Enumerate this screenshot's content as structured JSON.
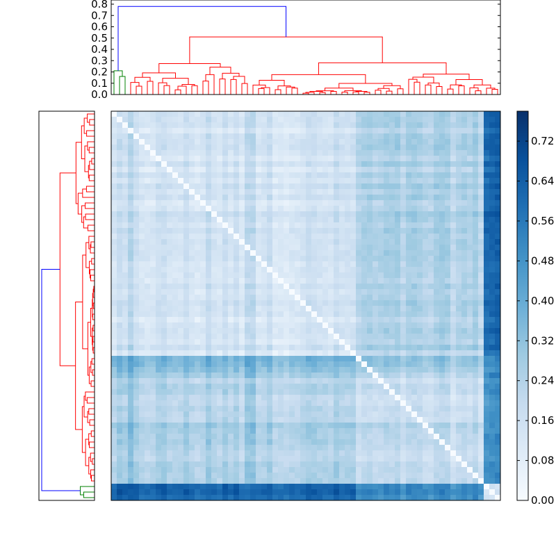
{
  "chart_data": {
    "type": "heatmap",
    "description_note": "",
    "top_dendrogram": {
      "yticks": [
        "0.0",
        "0.1",
        "0.2",
        "0.3",
        "0.4",
        "0.5",
        "0.6",
        "0.7",
        "0.8"
      ],
      "ylim": [
        0,
        0.8
      ],
      "max_height": 0.78,
      "cluster_colors": [
        "#ff0000",
        "#0000ff",
        "#008000"
      ]
    },
    "left_dendrogram": {
      "max_height": 0.78
    },
    "heatmap": {
      "n": 70,
      "colormap": "Blues",
      "vmin": 0.0,
      "vmax": 0.78
    },
    "colorbar": {
      "ticks": [
        "0.00",
        "0.08",
        "0.16",
        "0.24",
        "0.32",
        "0.40",
        "0.48",
        "0.56",
        "0.64",
        "0.72"
      ],
      "tick_values": [
        0.0,
        0.08,
        0.16,
        0.24,
        0.32,
        0.4,
        0.48,
        0.56,
        0.64,
        0.72
      ],
      "range": [
        0.0,
        0.78
      ]
    }
  }
}
